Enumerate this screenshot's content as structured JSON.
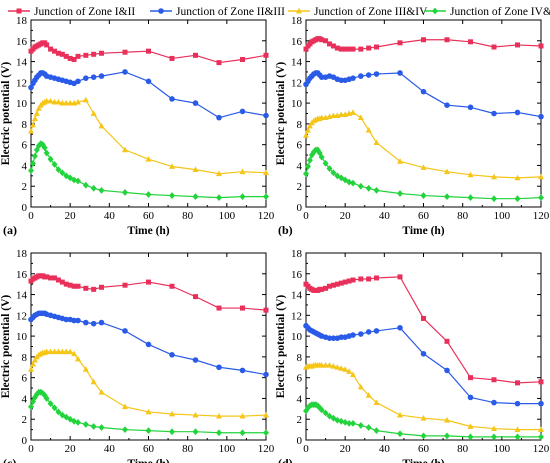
{
  "legend": [
    {
      "label": "Junction of Zone I&II",
      "color": "#e8305a",
      "marker": "square"
    },
    {
      "label": "Junction of Zone II&III",
      "color": "#2a5be8",
      "marker": "circle"
    },
    {
      "label": "Junction of Zone III&IV",
      "color": "#f5c518",
      "marker": "triangle"
    },
    {
      "label": "Junction of Zone IV&V",
      "color": "#22d33c",
      "marker": "diamond"
    }
  ],
  "chart_data": [
    {
      "type": "line",
      "panel_label": "(a)",
      "xlabel": "Time (h)",
      "ylabel": "Electric potential (V)",
      "xlim": [
        0,
        120
      ],
      "ylim": [
        0,
        18
      ],
      "xticks": [
        0,
        20,
        40,
        60,
        80,
        100,
        120
      ],
      "yticks": [
        0,
        2,
        4,
        6,
        8,
        10,
        12,
        14,
        16,
        18
      ],
      "grid": false,
      "series": [
        {
          "name": "Junction of Zone I&II",
          "color": "#e8305a",
          "marker": "square",
          "x": [
            0,
            1,
            2,
            3,
            4,
            5,
            6,
            7,
            8,
            10,
            12,
            14,
            16,
            18,
            20,
            22,
            24,
            28,
            32,
            36,
            48,
            60,
            72,
            84,
            96,
            108,
            120
          ],
          "y": [
            15.0,
            15.2,
            15.4,
            15.5,
            15.6,
            15.7,
            15.8,
            15.8,
            15.6,
            15.2,
            15.0,
            14.8,
            14.7,
            14.5,
            14.3,
            14.2,
            14.5,
            14.6,
            14.7,
            14.8,
            14.9,
            15.0,
            14.3,
            14.6,
            13.9,
            14.2,
            14.6
          ]
        },
        {
          "name": "Junction of Zone II&III",
          "color": "#2a5be8",
          "marker": "circle",
          "x": [
            0,
            1,
            2,
            3,
            4,
            5,
            6,
            7,
            8,
            10,
            12,
            14,
            16,
            18,
            20,
            22,
            24,
            28,
            32,
            36,
            48,
            60,
            72,
            84,
            96,
            108,
            120
          ],
          "y": [
            11.5,
            11.9,
            12.2,
            12.5,
            12.7,
            12.9,
            12.9,
            12.8,
            12.6,
            12.5,
            12.4,
            12.3,
            12.2,
            12.1,
            12.0,
            11.9,
            12.1,
            12.4,
            12.5,
            12.6,
            13.0,
            12.1,
            10.4,
            10.0,
            8.6,
            9.2,
            8.8
          ]
        },
        {
          "name": "Junction of Zone III&IV",
          "color": "#f5c518",
          "marker": "triangle",
          "x": [
            0,
            1,
            2,
            3,
            4,
            5,
            6,
            7,
            8,
            10,
            12,
            14,
            16,
            18,
            20,
            22,
            24,
            28,
            32,
            36,
            48,
            60,
            72,
            84,
            96,
            108,
            120
          ],
          "y": [
            7.3,
            7.9,
            8.5,
            9.0,
            9.5,
            9.8,
            10.0,
            10.1,
            10.2,
            10.2,
            10.1,
            10.1,
            10.0,
            10.0,
            10.0,
            10.0,
            10.1,
            10.3,
            9.0,
            7.8,
            5.5,
            4.6,
            3.9,
            3.6,
            3.2,
            3.4,
            3.3
          ]
        },
        {
          "name": "Junction of Zone IV&V",
          "color": "#22d33c",
          "marker": "diamond",
          "x": [
            0,
            1,
            2,
            3,
            4,
            5,
            6,
            7,
            8,
            10,
            12,
            14,
            16,
            18,
            20,
            22,
            24,
            28,
            32,
            36,
            48,
            60,
            72,
            84,
            96,
            108,
            120
          ],
          "y": [
            3.5,
            4.2,
            4.9,
            5.5,
            5.9,
            6.1,
            6.0,
            5.7,
            5.2,
            4.6,
            4.1,
            3.6,
            3.3,
            3.0,
            2.8,
            2.6,
            2.5,
            2.1,
            1.8,
            1.6,
            1.4,
            1.2,
            1.1,
            1.0,
            0.9,
            1.0,
            1.0
          ]
        }
      ]
    },
    {
      "type": "line",
      "panel_label": "(b)",
      "xlabel": "Time (h)",
      "ylabel": "Electric potential (V)",
      "xlim": [
        0,
        120
      ],
      "ylim": [
        0,
        18
      ],
      "xticks": [
        0,
        20,
        40,
        60,
        80,
        100,
        120
      ],
      "yticks": [
        0,
        2,
        4,
        6,
        8,
        10,
        12,
        14,
        16,
        18
      ],
      "grid": false,
      "series": [
        {
          "name": "Junction of Zone I&II",
          "color": "#e8305a",
          "marker": "square",
          "x": [
            0,
            1,
            2,
            3,
            4,
            5,
            6,
            7,
            8,
            10,
            12,
            14,
            16,
            18,
            20,
            22,
            24,
            28,
            32,
            36,
            48,
            60,
            72,
            84,
            96,
            108,
            120
          ],
          "y": [
            15.2,
            15.5,
            15.7,
            15.9,
            16.0,
            16.1,
            16.2,
            16.2,
            16.1,
            16.0,
            15.7,
            15.5,
            15.3,
            15.2,
            15.2,
            15.2,
            15.2,
            15.2,
            15.3,
            15.4,
            15.8,
            16.1,
            16.1,
            15.9,
            15.4,
            15.6,
            15.5
          ]
        },
        {
          "name": "Junction of Zone II&III",
          "color": "#2a5be8",
          "marker": "circle",
          "x": [
            0,
            1,
            2,
            3,
            4,
            5,
            6,
            7,
            8,
            10,
            12,
            14,
            16,
            18,
            20,
            22,
            24,
            28,
            32,
            36,
            48,
            60,
            72,
            84,
            96,
            108,
            120
          ],
          "y": [
            11.8,
            12.1,
            12.4,
            12.6,
            12.8,
            12.9,
            12.9,
            12.7,
            12.5,
            12.5,
            12.6,
            12.5,
            12.3,
            12.2,
            12.2,
            12.3,
            12.4,
            12.6,
            12.7,
            12.8,
            12.9,
            11.1,
            9.8,
            9.6,
            9.0,
            9.1,
            8.7
          ]
        },
        {
          "name": "Junction of Zone III&IV",
          "color": "#f5c518",
          "marker": "triangle",
          "x": [
            0,
            1,
            2,
            3,
            4,
            5,
            6,
            7,
            8,
            10,
            12,
            14,
            16,
            18,
            20,
            22,
            24,
            28,
            32,
            36,
            48,
            60,
            72,
            84,
            96,
            108,
            120
          ],
          "y": [
            6.9,
            7.4,
            7.8,
            8.1,
            8.3,
            8.4,
            8.5,
            8.5,
            8.6,
            8.6,
            8.7,
            8.8,
            8.8,
            8.9,
            8.9,
            9.0,
            9.1,
            8.6,
            7.4,
            6.2,
            4.4,
            3.8,
            3.4,
            3.1,
            2.9,
            2.8,
            2.9
          ]
        },
        {
          "name": "Junction of Zone IV&V",
          "color": "#22d33c",
          "marker": "diamond",
          "x": [
            0,
            1,
            2,
            3,
            4,
            5,
            6,
            7,
            8,
            10,
            12,
            14,
            16,
            18,
            20,
            22,
            24,
            28,
            32,
            36,
            48,
            60,
            72,
            84,
            96,
            108,
            120
          ],
          "y": [
            3.2,
            3.9,
            4.5,
            5.0,
            5.3,
            5.5,
            5.5,
            5.2,
            4.8,
            4.2,
            3.7,
            3.3,
            3.0,
            2.8,
            2.6,
            2.4,
            2.3,
            2.0,
            1.8,
            1.6,
            1.3,
            1.1,
            1.0,
            0.9,
            0.8,
            0.8,
            0.9
          ]
        }
      ]
    },
    {
      "type": "line",
      "panel_label": "(c)",
      "xlabel": "Time (h)",
      "ylabel": "Electric potential (V)",
      "xlim": [
        0,
        120
      ],
      "ylim": [
        0,
        18
      ],
      "xticks": [
        0,
        20,
        40,
        60,
        80,
        100,
        120
      ],
      "yticks": [
        0,
        2,
        4,
        6,
        8,
        10,
        12,
        14,
        16,
        18
      ],
      "grid": false,
      "series": [
        {
          "name": "Junction of Zone I&II",
          "color": "#e8305a",
          "marker": "square",
          "x": [
            0,
            1,
            2,
            3,
            4,
            5,
            6,
            7,
            8,
            10,
            12,
            14,
            16,
            18,
            20,
            22,
            24,
            28,
            32,
            36,
            48,
            60,
            72,
            84,
            96,
            108,
            120
          ],
          "y": [
            15.3,
            15.5,
            15.6,
            15.7,
            15.8,
            15.8,
            15.8,
            15.7,
            15.7,
            15.6,
            15.6,
            15.4,
            15.2,
            15.0,
            14.9,
            14.8,
            14.8,
            14.6,
            14.5,
            14.7,
            14.9,
            15.2,
            14.8,
            13.8,
            12.7,
            12.7,
            12.5
          ]
        },
        {
          "name": "Junction of Zone II&III",
          "color": "#2a5be8",
          "marker": "circle",
          "x": [
            0,
            1,
            2,
            3,
            4,
            5,
            6,
            7,
            8,
            10,
            12,
            14,
            16,
            18,
            20,
            22,
            24,
            28,
            32,
            36,
            48,
            60,
            72,
            84,
            96,
            108,
            120
          ],
          "y": [
            11.6,
            11.8,
            12.0,
            12.1,
            12.2,
            12.2,
            12.2,
            12.2,
            12.1,
            12.0,
            11.9,
            11.8,
            11.7,
            11.6,
            11.6,
            11.5,
            11.5,
            11.3,
            11.2,
            11.3,
            10.5,
            9.2,
            8.2,
            7.7,
            7.0,
            6.7,
            6.3
          ]
        },
        {
          "name": "Junction of Zone III&IV",
          "color": "#f5c518",
          "marker": "triangle",
          "x": [
            0,
            1,
            2,
            3,
            4,
            5,
            6,
            7,
            8,
            10,
            12,
            14,
            16,
            18,
            20,
            22,
            24,
            28,
            32,
            36,
            48,
            60,
            72,
            84,
            96,
            108,
            120
          ],
          "y": [
            6.8,
            7.3,
            7.7,
            8.0,
            8.2,
            8.3,
            8.4,
            8.4,
            8.5,
            8.5,
            8.5,
            8.5,
            8.5,
            8.5,
            8.5,
            8.3,
            7.8,
            6.8,
            5.6,
            4.6,
            3.2,
            2.7,
            2.5,
            2.4,
            2.3,
            2.3,
            2.4
          ]
        },
        {
          "name": "Junction of Zone IV&V",
          "color": "#22d33c",
          "marker": "diamond",
          "x": [
            0,
            1,
            2,
            3,
            4,
            5,
            6,
            7,
            8,
            10,
            12,
            14,
            16,
            18,
            20,
            22,
            24,
            28,
            32,
            36,
            48,
            60,
            72,
            84,
            96,
            108,
            120
          ],
          "y": [
            3.2,
            3.7,
            4.1,
            4.4,
            4.6,
            4.6,
            4.5,
            4.3,
            4.0,
            3.5,
            3.1,
            2.7,
            2.4,
            2.2,
            2.0,
            1.8,
            1.7,
            1.5,
            1.3,
            1.2,
            1.0,
            0.9,
            0.8,
            0.8,
            0.7,
            0.7,
            0.7
          ]
        }
      ]
    },
    {
      "type": "line",
      "panel_label": "(d)",
      "xlabel": "Time (h)",
      "ylabel": "Electric potential (V)",
      "xlim": [
        0,
        120
      ],
      "ylim": [
        0,
        18
      ],
      "xticks": [
        0,
        20,
        40,
        60,
        80,
        100,
        120
      ],
      "yticks": [
        0,
        2,
        4,
        6,
        8,
        10,
        12,
        14,
        16,
        18
      ],
      "grid": false,
      "series": [
        {
          "name": "Junction of Zone I&II",
          "color": "#e8305a",
          "marker": "square",
          "x": [
            0,
            1,
            2,
            3,
            4,
            5,
            6,
            7,
            8,
            10,
            12,
            14,
            16,
            18,
            20,
            22,
            24,
            28,
            32,
            36,
            48,
            60,
            72,
            84,
            96,
            108,
            120
          ],
          "y": [
            15.0,
            14.8,
            14.6,
            14.5,
            14.4,
            14.4,
            14.4,
            14.5,
            14.5,
            14.6,
            14.8,
            14.9,
            15.0,
            15.1,
            15.2,
            15.3,
            15.4,
            15.5,
            15.5,
            15.6,
            15.7,
            11.7,
            9.5,
            6.0,
            5.8,
            5.5,
            5.6
          ]
        },
        {
          "name": "Junction of Zone II&III",
          "color": "#2a5be8",
          "marker": "circle",
          "x": [
            0,
            1,
            2,
            3,
            4,
            5,
            6,
            7,
            8,
            10,
            12,
            14,
            16,
            18,
            20,
            22,
            24,
            28,
            32,
            36,
            48,
            60,
            72,
            84,
            96,
            108,
            120
          ],
          "y": [
            11.0,
            10.8,
            10.6,
            10.5,
            10.4,
            10.3,
            10.2,
            10.1,
            10.0,
            9.9,
            9.8,
            9.8,
            9.8,
            9.9,
            9.9,
            10.0,
            10.1,
            10.2,
            10.4,
            10.5,
            10.8,
            8.3,
            6.7,
            4.1,
            3.6,
            3.5,
            3.5
          ]
        },
        {
          "name": "Junction of Zone III&IV",
          "color": "#f5c518",
          "marker": "triangle",
          "x": [
            0,
            1,
            2,
            3,
            4,
            5,
            6,
            7,
            8,
            10,
            12,
            14,
            16,
            18,
            20,
            22,
            24,
            28,
            32,
            36,
            48,
            60,
            72,
            84,
            96,
            108,
            120
          ],
          "y": [
            7.0,
            7.1,
            7.1,
            7.1,
            7.2,
            7.2,
            7.2,
            7.2,
            7.2,
            7.2,
            7.2,
            7.1,
            7.0,
            6.9,
            6.8,
            6.6,
            6.3,
            5.1,
            4.3,
            3.6,
            2.4,
            2.1,
            1.9,
            1.3,
            1.1,
            1.0,
            1.0
          ]
        },
        {
          "name": "Junction of Zone IV&V",
          "color": "#22d33c",
          "marker": "diamond",
          "x": [
            0,
            1,
            2,
            3,
            4,
            5,
            6,
            7,
            8,
            10,
            12,
            14,
            16,
            18,
            20,
            22,
            24,
            28,
            32,
            36,
            48,
            60,
            72,
            84,
            96,
            108,
            120
          ],
          "y": [
            2.8,
            3.1,
            3.3,
            3.4,
            3.4,
            3.4,
            3.3,
            3.1,
            2.9,
            2.6,
            2.3,
            2.1,
            1.9,
            1.8,
            1.7,
            1.6,
            1.6,
            1.4,
            1.2,
            0.9,
            0.6,
            0.4,
            0.4,
            0.3,
            0.3,
            0.3,
            0.3
          ]
        }
      ]
    }
  ]
}
